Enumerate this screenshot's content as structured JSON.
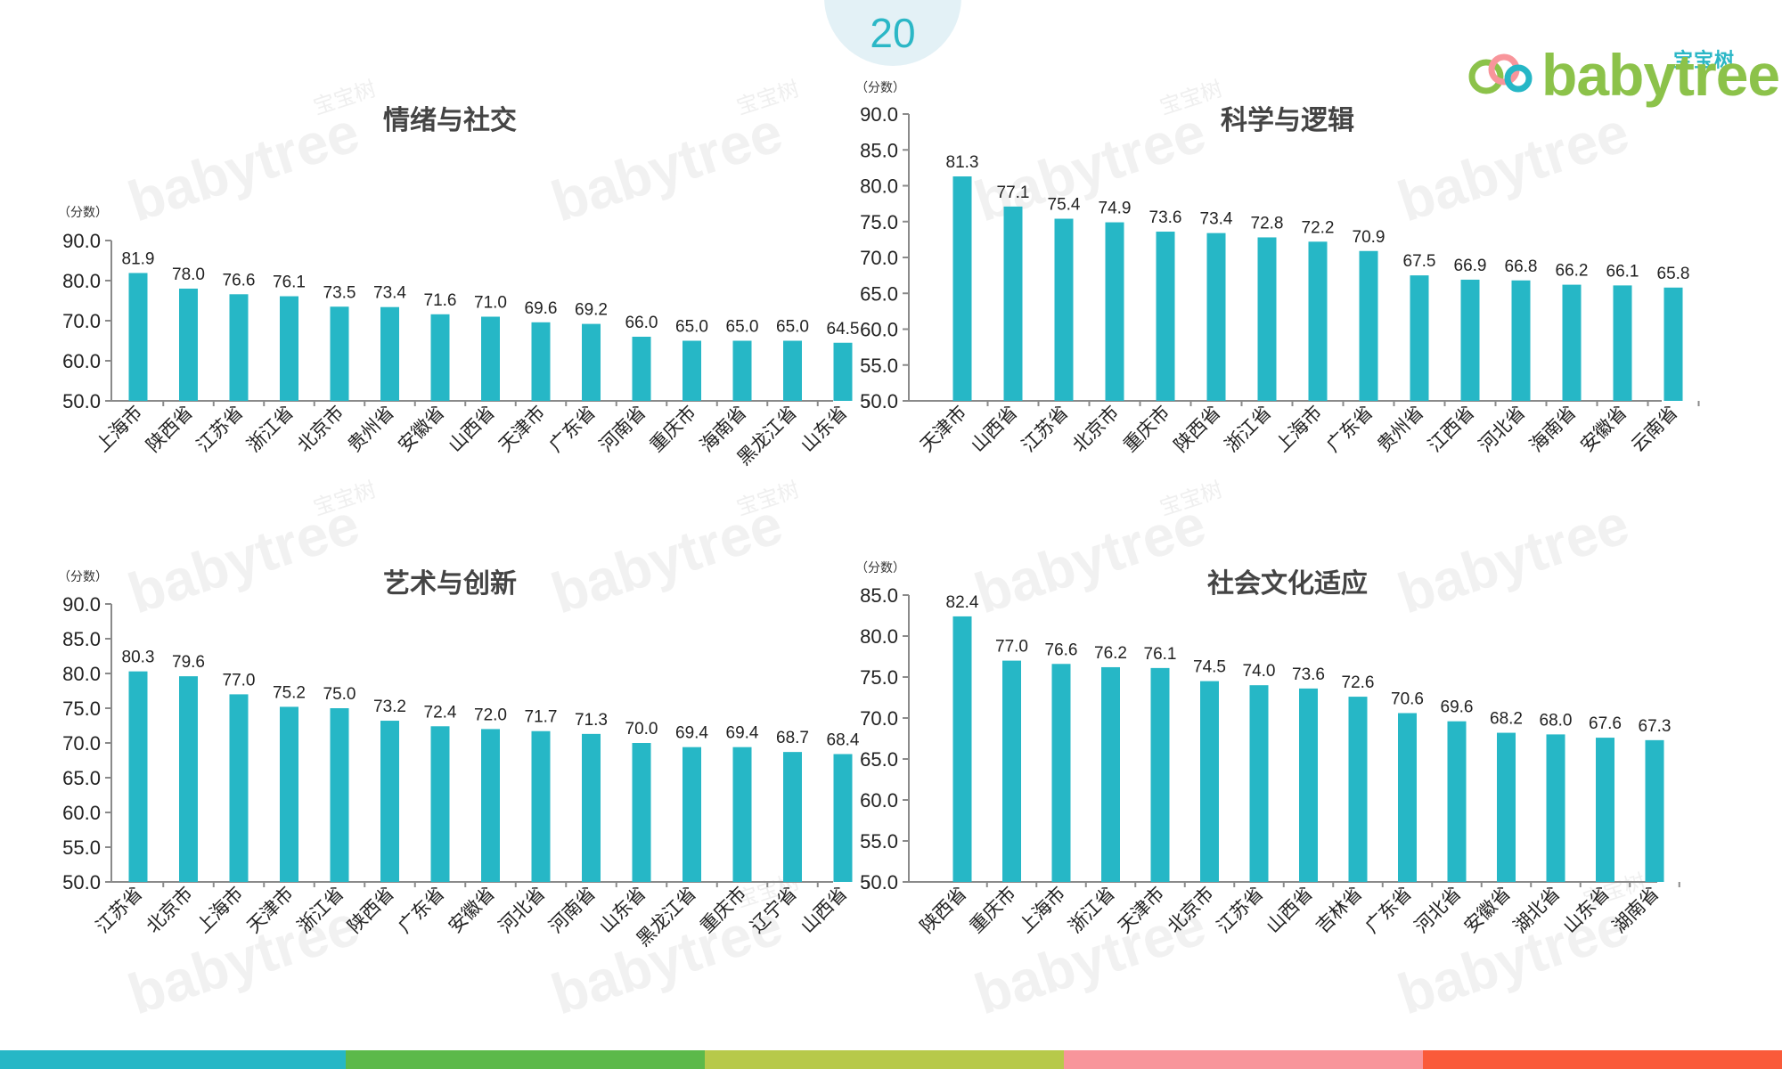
{
  "page": {
    "number": "20",
    "logo_cn": "宝宝树",
    "logo_en": "babytree",
    "watermark_text": "babytree",
    "watermark_cn": "宝宝树"
  },
  "colors": {
    "bar": "#26b7c6",
    "axis": "#8a8a8a",
    "footer": [
      "#26b7c6",
      "#5cb94a",
      "#b7c94a",
      "#f8959b",
      "#fa5a3a"
    ]
  },
  "chart_data": [
    {
      "type": "bar",
      "title": "情绪与社交",
      "unit_label": "（分数）",
      "ylim": [
        50,
        90
      ],
      "yticks": [
        "50.0",
        "60.0",
        "70.0",
        "80.0",
        "90.0"
      ],
      "categories": [
        "上海市",
        "陕西省",
        "江苏省",
        "浙江省",
        "北京市",
        "贵州省",
        "安徽省",
        "山西省",
        "天津市",
        "广东省",
        "河南省",
        "重庆市",
        "海南省",
        "黑龙江省",
        "山东省"
      ],
      "values": [
        81.9,
        78.0,
        76.6,
        76.1,
        73.5,
        73.4,
        71.6,
        71.0,
        69.6,
        69.2,
        66.0,
        65.0,
        65.0,
        65.0,
        64.5
      ],
      "value_labels": [
        "81.9",
        "78.0",
        "76.6",
        "76.1",
        "73.5",
        "73.4",
        "71.6",
        "71.0",
        "69.6",
        "69.2",
        "66.0",
        "65.0",
        "65.0",
        "65.0",
        "64.5"
      ]
    },
    {
      "type": "bar",
      "title": "科学与逻辑",
      "unit_label": "（分数）",
      "ylim": [
        50,
        90
      ],
      "yticks": [
        "50.0",
        "55.0",
        "60.0",
        "65.0",
        "70.0",
        "75.0",
        "80.0",
        "85.0",
        "90.0"
      ],
      "categories": [
        "天津市",
        "山西省",
        "江苏省",
        "北京市",
        "重庆市",
        "陕西省",
        "浙江省",
        "上海市",
        "广东省",
        "贵州省",
        "江西省",
        "河北省",
        "海南省",
        "安徽省",
        "云南省"
      ],
      "values": [
        81.3,
        77.1,
        75.4,
        74.9,
        73.6,
        73.4,
        72.8,
        72.2,
        70.9,
        67.5,
        66.9,
        66.8,
        66.2,
        66.1,
        65.8
      ],
      "value_labels": [
        "81.3",
        "77.1",
        "75.4",
        "74.9",
        "73.6",
        "73.4",
        "72.8",
        "72.2",
        "70.9",
        "67.5",
        "66.9",
        "66.8",
        "66.2",
        "66.1",
        "65.8"
      ]
    },
    {
      "type": "bar",
      "title": "艺术与创新",
      "unit_label": "（分数）",
      "ylim": [
        50,
        90
      ],
      "yticks": [
        "50.0",
        "55.0",
        "60.0",
        "65.0",
        "70.0",
        "75.0",
        "80.0",
        "85.0",
        "90.0"
      ],
      "categories": [
        "江苏省",
        "北京市",
        "上海市",
        "天津市",
        "浙江省",
        "陕西省",
        "广东省",
        "安徽省",
        "河北省",
        "河南省",
        "山东省",
        "黑龙江省",
        "重庆市",
        "辽宁省",
        "山西省"
      ],
      "values": [
        80.3,
        79.6,
        77.0,
        75.2,
        75.0,
        73.2,
        72.4,
        72.0,
        71.7,
        71.3,
        70.0,
        69.4,
        69.4,
        68.7,
        68.4
      ],
      "value_labels": [
        "80.3",
        "79.6",
        "77.0",
        "75.2",
        "75.0",
        "73.2",
        "72.4",
        "72.0",
        "71.7",
        "71.3",
        "70.0",
        "69.4",
        "69.4",
        "68.7",
        "68.4"
      ]
    },
    {
      "type": "bar",
      "title": "社会文化适应",
      "unit_label": "（分数）",
      "ylim": [
        50,
        85
      ],
      "yticks": [
        "50.0",
        "55.0",
        "60.0",
        "65.0",
        "70.0",
        "75.0",
        "80.0",
        "85.0"
      ],
      "categories": [
        "陕西省",
        "重庆市",
        "上海市",
        "浙江省",
        "天津市",
        "北京市",
        "江苏省",
        "山西省",
        "吉林省",
        "广东省",
        "河北省",
        "安徽省",
        "湖北省",
        "山东省",
        "湖南省"
      ],
      "values": [
        82.4,
        77.0,
        76.6,
        76.2,
        76.1,
        74.5,
        74.0,
        73.6,
        72.6,
        70.6,
        69.6,
        68.2,
        68.0,
        67.6,
        67.3
      ],
      "value_labels": [
        "82.4",
        "77.0",
        "76.6",
        "76.2",
        "76.1",
        "74.5",
        "74.0",
        "73.6",
        "72.6",
        "70.6",
        "69.6",
        "68.2",
        "68.0",
        "67.6",
        "67.3"
      ]
    }
  ]
}
